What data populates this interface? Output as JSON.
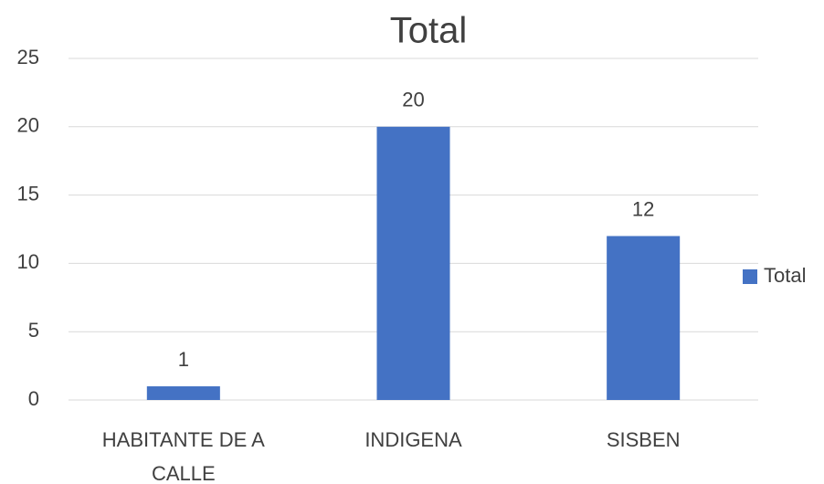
{
  "chart_data": {
    "type": "bar",
    "title": "Total",
    "categories": [
      "HABITANTE DE A CALLE",
      "INDIGENA",
      "SISBEN"
    ],
    "series": [
      {
        "name": "Total",
        "color": "#4472c4",
        "values": [
          1,
          20,
          12
        ]
      }
    ],
    "ylim": [
      0,
      25
    ],
    "yticks": [
      0,
      5,
      10,
      15,
      20,
      25
    ],
    "grid": true,
    "legend": "right",
    "data_labels": true
  }
}
